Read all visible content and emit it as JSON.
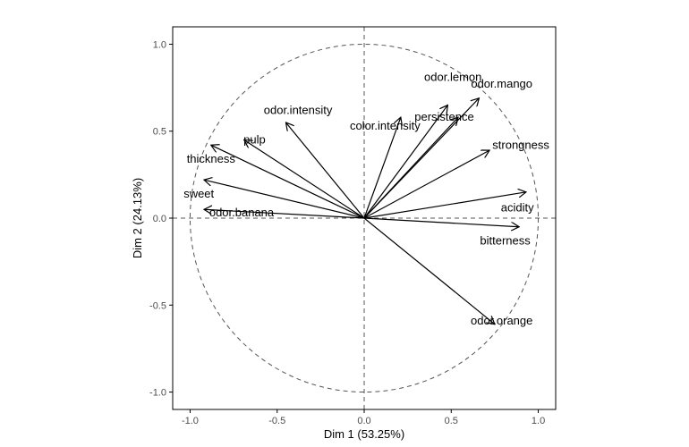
{
  "chart_data": {
    "type": "scatter",
    "subtype": "pca-variables-factor-map",
    "title": "",
    "xlabel": "Dim 1 (53.25%)",
    "ylabel": "Dim 2 (24.13%)",
    "xlim": [
      -1.1,
      1.1
    ],
    "ylim": [
      -1.1,
      1.1
    ],
    "x_ticks": [
      {
        "value": -1.0,
        "label": "-1.0"
      },
      {
        "value": -0.5,
        "label": "-0.5"
      },
      {
        "value": 0.0,
        "label": "0.0"
      },
      {
        "value": 0.5,
        "label": "0.5"
      },
      {
        "value": 1.0,
        "label": "1.0"
      }
    ],
    "y_ticks": [
      {
        "value": -1.0,
        "label": "-1.0"
      },
      {
        "value": -0.5,
        "label": "-0.5"
      },
      {
        "value": 0.0,
        "label": "0.0"
      },
      {
        "value": 0.5,
        "label": "0.5"
      },
      {
        "value": 1.0,
        "label": "1.0"
      }
    ],
    "grid": false,
    "unit_circle": true,
    "reference_lines": {
      "x": 0,
      "y": 0,
      "style": "dashed"
    },
    "variables": [
      {
        "name": "odor.lemon",
        "x": 0.48,
        "y": 0.65,
        "label_anchor": "middle",
        "label_dx": 0.03,
        "label_dy": 0.16
      },
      {
        "name": "odor.mango",
        "x": 0.66,
        "y": 0.69,
        "label_anchor": "middle",
        "label_dx": 0.13,
        "label_dy": 0.08
      },
      {
        "name": "persistence",
        "x": 0.54,
        "y": 0.58,
        "label_anchor": "middle",
        "label_dx": -0.08,
        "label_dy": 0.0
      },
      {
        "name": "color.intensity",
        "x": 0.21,
        "y": 0.58,
        "label_anchor": "middle",
        "label_dx": -0.09,
        "label_dy": -0.05
      },
      {
        "name": "strongness",
        "x": 0.72,
        "y": 0.39,
        "label_anchor": "middle",
        "label_dx": 0.18,
        "label_dy": 0.03
      },
      {
        "name": "acidity",
        "x": 0.93,
        "y": 0.15,
        "label_anchor": "middle",
        "label_dx": -0.05,
        "label_dy": -0.09
      },
      {
        "name": "bitterness",
        "x": 0.89,
        "y": -0.05,
        "label_anchor": "middle",
        "label_dx": -0.08,
        "label_dy": -0.08
      },
      {
        "name": "odor.orange",
        "x": 0.75,
        "y": -0.61,
        "label_anchor": "middle",
        "label_dx": 0.04,
        "label_dy": 0.02
      },
      {
        "name": "odor.intensity",
        "x": -0.45,
        "y": 0.55,
        "label_anchor": "middle",
        "label_dx": 0.07,
        "label_dy": 0.07
      },
      {
        "name": "pulp",
        "x": -0.69,
        "y": 0.45,
        "label_anchor": "middle",
        "label_dx": 0.06,
        "label_dy": 0.0
      },
      {
        "name": "thickness",
        "x": -0.88,
        "y": 0.42,
        "label_anchor": "middle",
        "label_dx": 0.0,
        "label_dy": -0.08
      },
      {
        "name": "sweet",
        "x": -0.92,
        "y": 0.22,
        "label_anchor": "middle",
        "label_dx": -0.03,
        "label_dy": -0.08
      },
      {
        "name": "odor.banana",
        "x": -0.92,
        "y": 0.05,
        "label_anchor": "start",
        "label_dx": 0.03,
        "label_dy": -0.02
      }
    ],
    "colors": {
      "arrow": "#000000",
      "circle": "#555555",
      "reference": "#555555",
      "frame": "#000000"
    }
  }
}
